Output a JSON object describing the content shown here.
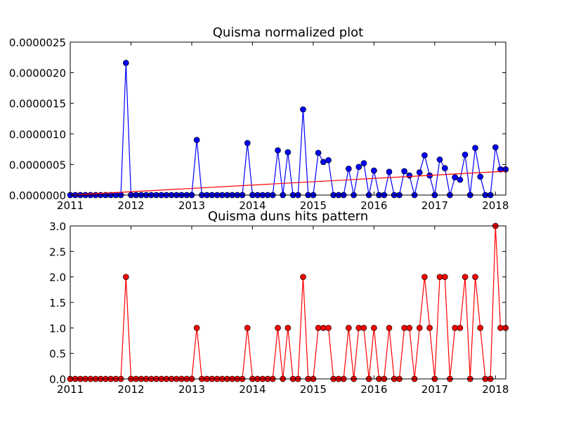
{
  "chart_data": [
    {
      "type": "line",
      "title": "Quisma normalized plot",
      "xlabel": "",
      "ylabel": "",
      "xlim": [
        2011.0,
        2018.17
      ],
      "ylim": [
        0,
        2.5e-06
      ],
      "x_ticks": [
        "2011",
        "2012",
        "2013",
        "2014",
        "2015",
        "2016",
        "2017",
        "2018"
      ],
      "y_ticks": [
        "0.0000000",
        "0.0000005",
        "0.0000010",
        "0.0000015",
        "0.0000020",
        "0.0000025"
      ],
      "grid": false,
      "x": [
        2011.0,
        2011.083,
        2011.167,
        2011.25,
        2011.333,
        2011.417,
        2011.5,
        2011.583,
        2011.667,
        2011.75,
        2011.833,
        2011.917,
        2012.0,
        2012.083,
        2012.167,
        2012.25,
        2012.333,
        2012.417,
        2012.5,
        2012.583,
        2012.667,
        2012.75,
        2012.833,
        2012.917,
        2013.0,
        2013.083,
        2013.167,
        2013.25,
        2013.333,
        2013.417,
        2013.5,
        2013.583,
        2013.667,
        2013.75,
        2013.833,
        2013.917,
        2014.0,
        2014.083,
        2014.167,
        2014.25,
        2014.333,
        2014.417,
        2014.5,
        2014.583,
        2014.667,
        2014.75,
        2014.833,
        2014.917,
        2015.0,
        2015.083,
        2015.167,
        2015.25,
        2015.333,
        2015.417,
        2015.5,
        2015.583,
        2015.667,
        2015.75,
        2015.833,
        2015.917,
        2016.0,
        2016.083,
        2016.167,
        2016.25,
        2016.333,
        2016.417,
        2016.5,
        2016.583,
        2016.667,
        2016.75,
        2016.833,
        2016.917,
        2017.0,
        2017.083,
        2017.167,
        2017.25,
        2017.333,
        2017.417,
        2017.5,
        2017.583,
        2017.667,
        2017.75,
        2017.833,
        2017.917,
        2018.0,
        2018.083,
        2018.167
      ],
      "series": [
        {
          "style": "markers+line",
          "color": "#0000ff",
          "values": [
            0,
            0,
            0,
            0,
            0,
            0,
            0,
            0,
            0,
            0,
            0,
            2.16e-06,
            0,
            0,
            0,
            0,
            0,
            0,
            0,
            0,
            0,
            0,
            0,
            0,
            0,
            9e-07,
            0,
            0,
            0,
            0,
            0,
            0,
            0,
            0,
            0,
            8.5e-07,
            0,
            0,
            0,
            0,
            0,
            7.3e-07,
            0,
            7e-07,
            0,
            0,
            1.4e-06,
            0,
            0,
            6.9e-07,
            5.4e-07,
            5.7e-07,
            0,
            0,
            0,
            4.3e-07,
            0,
            4.6e-07,
            5.2e-07,
            0,
            4e-07,
            0,
            0,
            3.8e-07,
            0,
            0,
            3.9e-07,
            3.2e-07,
            0,
            3.7e-07,
            6.5e-07,
            3.2e-07,
            0,
            5.8e-07,
            4.4e-07,
            0,
            2.9e-07,
            2.5e-07,
            6.6e-07,
            0,
            7.7e-07,
            3e-07,
            0,
            0,
            7.8e-07,
            4.2e-07,
            4.2e-07
          ]
        },
        {
          "style": "line",
          "color": "#ff0000",
          "x": [
            2011.0,
            2018.17
          ],
          "values": [
            0,
            3.9e-07
          ]
        }
      ]
    },
    {
      "type": "line",
      "title": "Quisma duns hits pattern",
      "xlabel": "",
      "ylabel": "",
      "xlim": [
        2011.0,
        2018.17
      ],
      "ylim": [
        0,
        3.0
      ],
      "x_ticks": [
        "2011",
        "2012",
        "2013",
        "2014",
        "2015",
        "2016",
        "2017",
        "2018"
      ],
      "y_ticks": [
        "0.0",
        "0.5",
        "1.0",
        "1.5",
        "2.0",
        "2.5",
        "3.0"
      ],
      "grid": false,
      "x": [
        2011.0,
        2011.083,
        2011.167,
        2011.25,
        2011.333,
        2011.417,
        2011.5,
        2011.583,
        2011.667,
        2011.75,
        2011.833,
        2011.917,
        2012.0,
        2012.083,
        2012.167,
        2012.25,
        2012.333,
        2012.417,
        2012.5,
        2012.583,
        2012.667,
        2012.75,
        2012.833,
        2012.917,
        2013.0,
        2013.083,
        2013.167,
        2013.25,
        2013.333,
        2013.417,
        2013.5,
        2013.583,
        2013.667,
        2013.75,
        2013.833,
        2013.917,
        2014.0,
        2014.083,
        2014.167,
        2014.25,
        2014.333,
        2014.417,
        2014.5,
        2014.583,
        2014.667,
        2014.75,
        2014.833,
        2014.917,
        2015.0,
        2015.083,
        2015.167,
        2015.25,
        2015.333,
        2015.417,
        2015.5,
        2015.583,
        2015.667,
        2015.75,
        2015.833,
        2015.917,
        2016.0,
        2016.083,
        2016.167,
        2016.25,
        2016.333,
        2016.417,
        2016.5,
        2016.583,
        2016.667,
        2016.75,
        2016.833,
        2016.917,
        2017.0,
        2017.083,
        2017.167,
        2017.25,
        2017.333,
        2017.417,
        2017.5,
        2017.583,
        2017.667,
        2017.75,
        2017.833,
        2017.917,
        2018.0,
        2018.083,
        2018.167
      ],
      "series": [
        {
          "style": "markers+line",
          "color": "#ff0000",
          "values": [
            0,
            0,
            0,
            0,
            0,
            0,
            0,
            0,
            0,
            0,
            0,
            2,
            0,
            0,
            0,
            0,
            0,
            0,
            0,
            0,
            0,
            0,
            0,
            0,
            0,
            1,
            0,
            0,
            0,
            0,
            0,
            0,
            0,
            0,
            0,
            1,
            0,
            0,
            0,
            0,
            0,
            1,
            0,
            1,
            0,
            0,
            2,
            0,
            0,
            1,
            1,
            1,
            0,
            0,
            0,
            1,
            0,
            1,
            1,
            0,
            1,
            0,
            0,
            1,
            0,
            0,
            1,
            1,
            0,
            1,
            2,
            1,
            0,
            2,
            2,
            0,
            1,
            1,
            2,
            0,
            2,
            1,
            0,
            0,
            3,
            1,
            1
          ]
        }
      ]
    }
  ]
}
